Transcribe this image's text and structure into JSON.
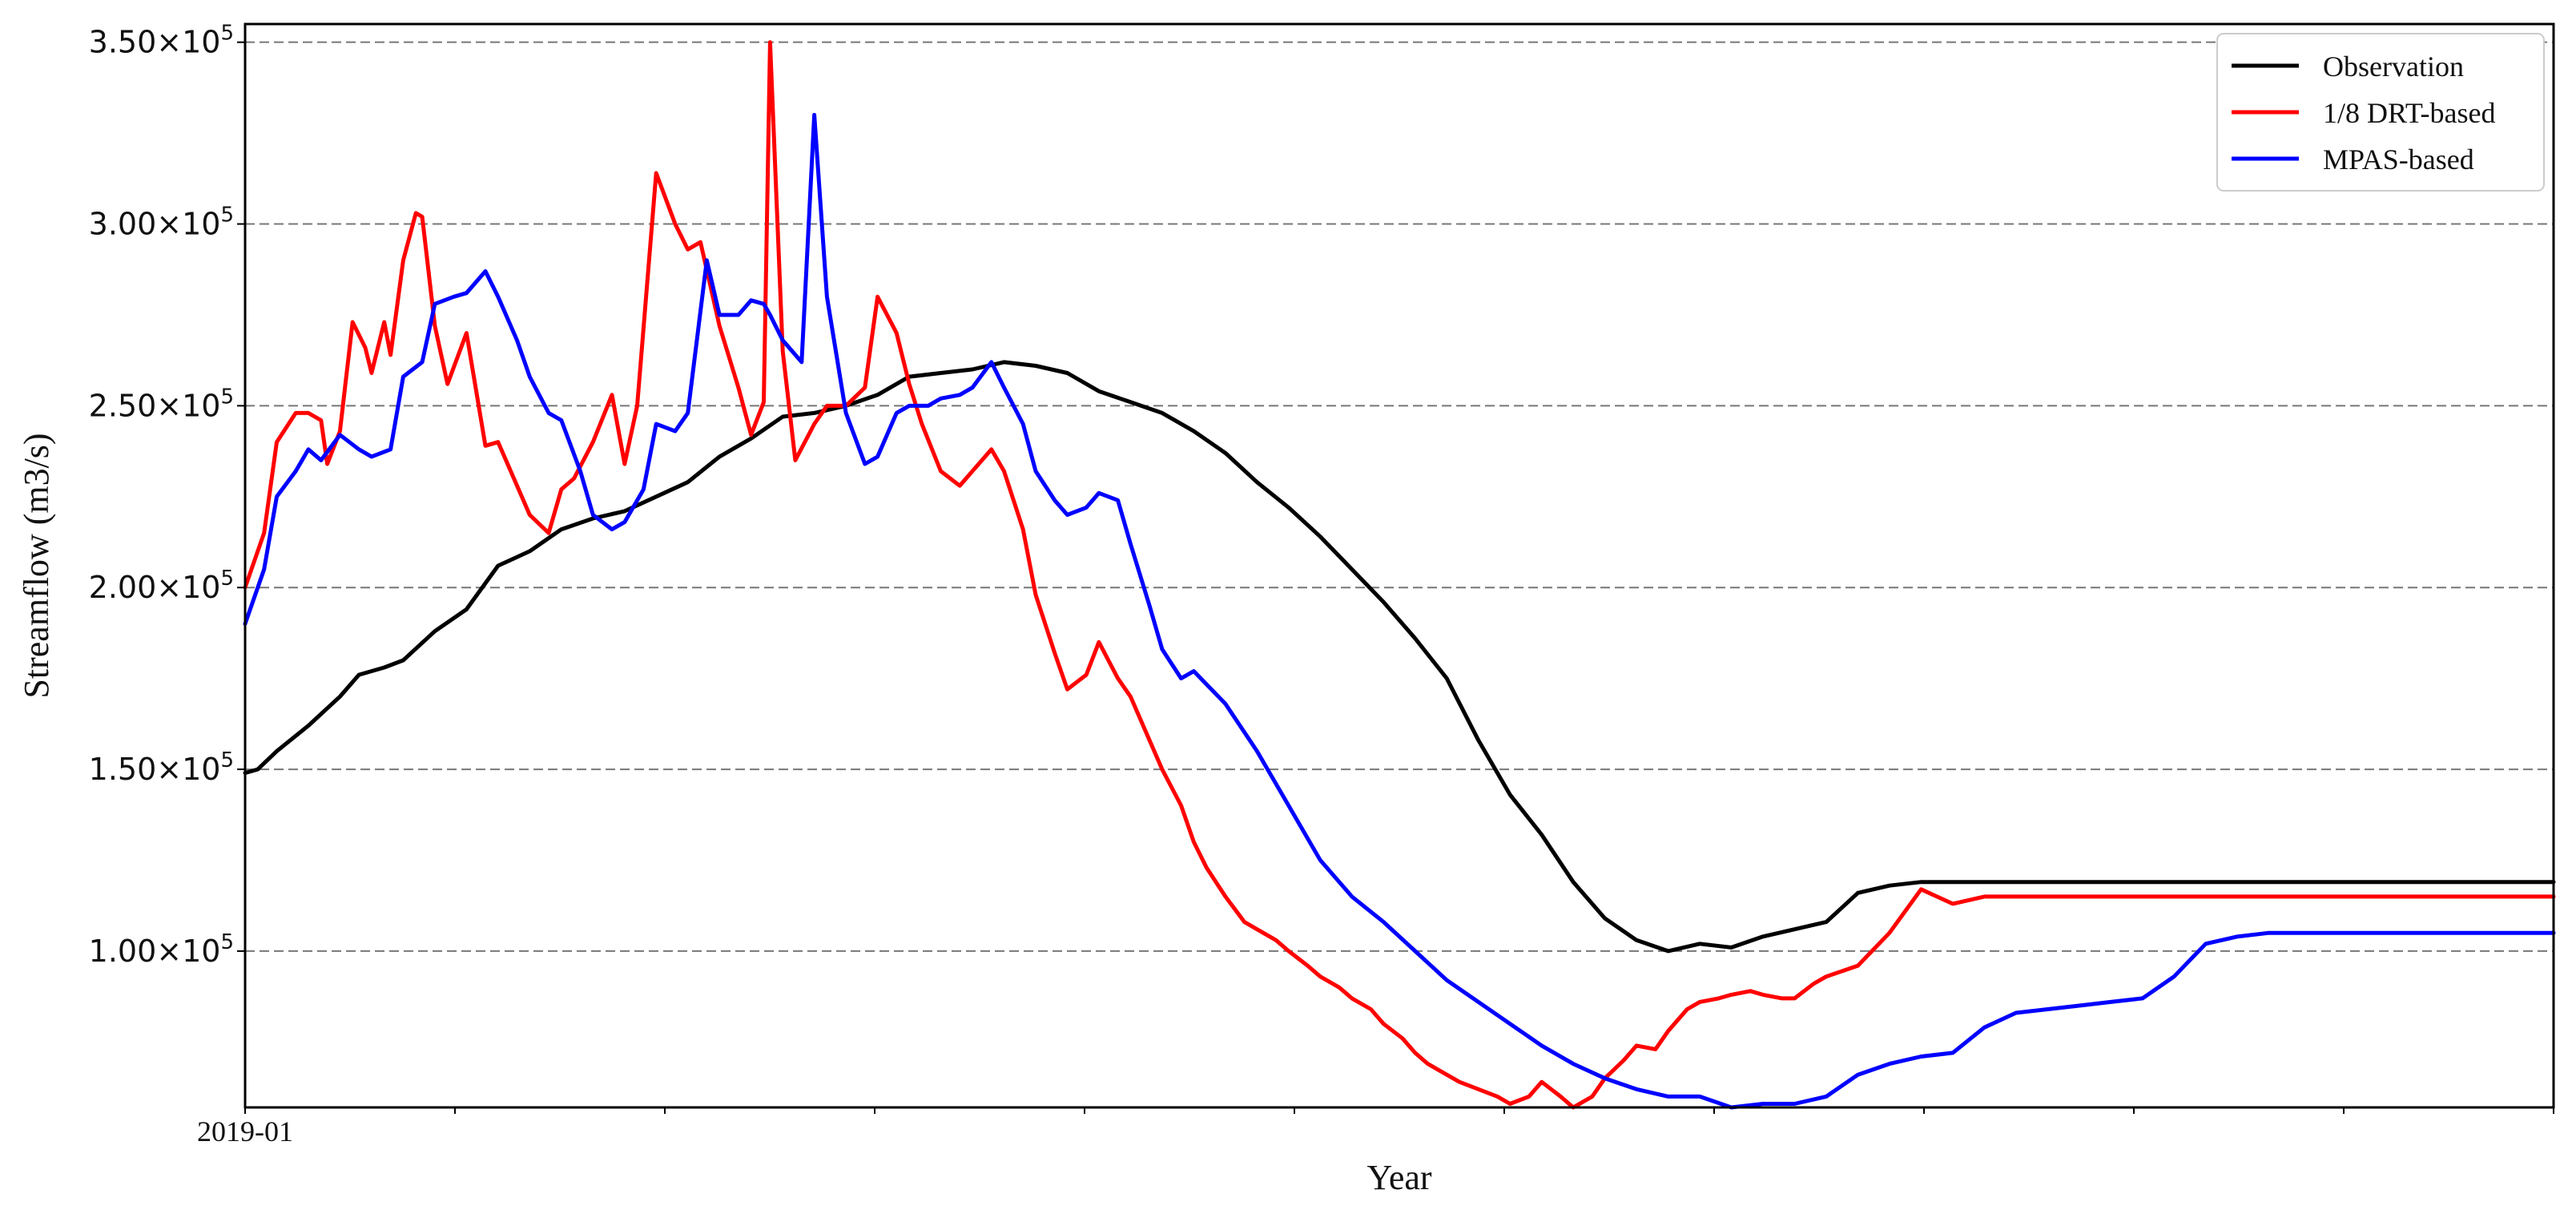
{
  "chart_data": {
    "type": "line",
    "xlabel": "Year",
    "ylabel": "Streamflow (m3/s)",
    "x_tick_labels": [
      "2019-01"
    ],
    "ylim": [
      57000,
      355000
    ],
    "y_ticks": [
      {
        "value": 100000,
        "label": "1.00×10",
        "exp": "5"
      },
      {
        "value": 150000,
        "label": "1.50×10",
        "exp": "5"
      },
      {
        "value": 200000,
        "label": "2.00×10",
        "exp": "5"
      },
      {
        "value": 250000,
        "label": "2.50×10",
        "exp": "5"
      },
      {
        "value": 300000,
        "label": "3.00×10",
        "exp": "5"
      },
      {
        "value": 350000,
        "label": "3.50×10",
        "exp": "5"
      }
    ],
    "grid": "horizontal-dashed",
    "legend_position": "top-right",
    "series": [
      {
        "name": "Observation",
        "color": "#000000",
        "x": [
          0,
          2,
          5,
          10,
          15,
          18,
          22,
          25,
          30,
          35,
          40,
          45,
          50,
          55,
          60,
          65,
          70,
          75,
          80,
          85,
          90,
          95,
          100,
          105,
          110,
          115,
          120,
          125,
          130,
          135,
          140,
          145,
          150,
          155,
          160,
          165,
          170,
          175,
          180,
          185,
          190,
          195,
          200,
          205,
          210,
          215,
          220,
          225,
          230,
          235,
          240,
          245,
          250,
          255,
          260,
          265,
          270,
          275,
          280,
          285,
          290,
          295,
          300,
          305,
          310,
          315,
          320,
          325,
          330,
          335,
          340,
          345,
          350,
          355,
          365
        ],
        "values": [
          149000,
          150000,
          155000,
          162000,
          170000,
          176000,
          178000,
          180000,
          188000,
          194000,
          206000,
          210000,
          216000,
          219000,
          221000,
          225000,
          229000,
          236000,
          241000,
          247000,
          248000,
          250000,
          253000,
          258000,
          259000,
          260000,
          262000,
          261000,
          259000,
          254000,
          251000,
          248000,
          243000,
          237000,
          229000,
          222000,
          214000,
          205000,
          196000,
          186000,
          175000,
          158000,
          143000,
          132000,
          119000,
          109000,
          103000,
          100000,
          102000,
          101000,
          104000,
          106000,
          108000,
          116000,
          118000,
          119000,
          119000,
          119000,
          119000,
          119000,
          119000,
          119000,
          119000,
          119000,
          119000,
          119000,
          119000,
          119000,
          119000,
          119000,
          119000,
          119000,
          119000,
          119000,
          119000
        ]
      },
      {
        "name": "1/8 DRT-based",
        "color": "#ff0000",
        "x": [
          0,
          3,
          5,
          8,
          10,
          12,
          13,
          15,
          17,
          19,
          20,
          22,
          23,
          25,
          27,
          28,
          30,
          32,
          35,
          38,
          40,
          42,
          45,
          48,
          50,
          52,
          55,
          58,
          60,
          62,
          65,
          68,
          70,
          72,
          75,
          78,
          80,
          82,
          83,
          85,
          87,
          90,
          92,
          95,
          98,
          100,
          103,
          105,
          107,
          110,
          113,
          115,
          118,
          120,
          123,
          125,
          128,
          130,
          133,
          135,
          138,
          140,
          142,
          145,
          148,
          150,
          152,
          155,
          158,
          160,
          163,
          165,
          168,
          170,
          173,
          175,
          178,
          180,
          183,
          185,
          187,
          190,
          192,
          195,
          198,
          200,
          203,
          205,
          208,
          210,
          213,
          215,
          218,
          220,
          223,
          225,
          228,
          230,
          233,
          235,
          238,
          240,
          243,
          245,
          248,
          250,
          255,
          260,
          265,
          270,
          275,
          280,
          285,
          290,
          295,
          300,
          305,
          310,
          315,
          320,
          325,
          330,
          335,
          340,
          345,
          350,
          355,
          360,
          365
        ],
        "values": [
          200000,
          215000,
          240000,
          248000,
          248000,
          246000,
          234000,
          243000,
          273000,
          266000,
          259000,
          273000,
          264000,
          290000,
          303000,
          302000,
          272000,
          256000,
          270000,
          239000,
          240000,
          232000,
          220000,
          215000,
          227000,
          230000,
          240000,
          253000,
          234000,
          250000,
          314000,
          300000,
          293000,
          295000,
          272000,
          255000,
          242000,
          251000,
          350000,
          265000,
          235000,
          245000,
          250000,
          250000,
          255000,
          280000,
          270000,
          256000,
          245000,
          232000,
          228000,
          232000,
          238000,
          232000,
          216000,
          198000,
          182000,
          172000,
          176000,
          185000,
          175000,
          170000,
          162000,
          150000,
          140000,
          130000,
          123000,
          115000,
          108000,
          106000,
          103000,
          100000,
          96000,
          93000,
          90000,
          87000,
          84000,
          80000,
          76000,
          72000,
          69000,
          66000,
          64000,
          62000,
          60000,
          58000,
          60000,
          64000,
          60000,
          57000,
          60000,
          65000,
          70000,
          74000,
          73000,
          78000,
          84000,
          86000,
          87000,
          88000,
          89000,
          88000,
          87000,
          87000,
          91000,
          93000,
          96000,
          105000,
          117000,
          113000,
          115000,
          115000,
          115000,
          115000,
          115000,
          115000,
          115000,
          115000,
          115000,
          115000,
          115000,
          115000,
          115000,
          115000,
          115000,
          115000,
          115000,
          115000,
          115000
        ]
      },
      {
        "name": "MPAS-based",
        "color": "#0000ff",
        "x": [
          0,
          3,
          5,
          8,
          10,
          12,
          15,
          18,
          20,
          23,
          25,
          28,
          30,
          33,
          35,
          38,
          40,
          43,
          45,
          48,
          50,
          53,
          55,
          58,
          60,
          63,
          65,
          68,
          70,
          73,
          75,
          78,
          80,
          82,
          83,
          85,
          88,
          90,
          92,
          95,
          98,
          100,
          103,
          105,
          108,
          110,
          113,
          115,
          118,
          120,
          123,
          125,
          128,
          130,
          133,
          135,
          138,
          140,
          143,
          145,
          148,
          150,
          155,
          160,
          165,
          170,
          175,
          180,
          185,
          190,
          195,
          200,
          205,
          210,
          215,
          220,
          225,
          230,
          235,
          240,
          245,
          250,
          255,
          260,
          265,
          270,
          275,
          280,
          285,
          290,
          295,
          300,
          305,
          310,
          315,
          320,
          325,
          330,
          335,
          340,
          345,
          350,
          355,
          360,
          365
        ],
        "values": [
          190000,
          205000,
          225000,
          232000,
          238000,
          235000,
          242000,
          238000,
          236000,
          238000,
          258000,
          262000,
          278000,
          280000,
          281000,
          287000,
          280000,
          268000,
          258000,
          248000,
          246000,
          232000,
          220000,
          216000,
          218000,
          227000,
          245000,
          243000,
          248000,
          290000,
          275000,
          275000,
          279000,
          278000,
          275000,
          268000,
          262000,
          330000,
          280000,
          248000,
          234000,
          236000,
          248000,
          250000,
          250000,
          252000,
          253000,
          255000,
          262000,
          255000,
          245000,
          232000,
          224000,
          220000,
          222000,
          226000,
          224000,
          212000,
          195000,
          183000,
          175000,
          177000,
          168000,
          155000,
          140000,
          125000,
          115000,
          108000,
          100000,
          92000,
          86000,
          80000,
          74000,
          69000,
          65000,
          62000,
          60000,
          60000,
          57000,
          58000,
          58000,
          60000,
          66000,
          69000,
          71000,
          72000,
          79000,
          83000,
          84000,
          85000,
          86000,
          87000,
          93000,
          102000,
          104000,
          105000,
          105000,
          105000,
          105000,
          105000,
          105000,
          105000,
          105000,
          105000,
          105000
        ]
      }
    ]
  }
}
